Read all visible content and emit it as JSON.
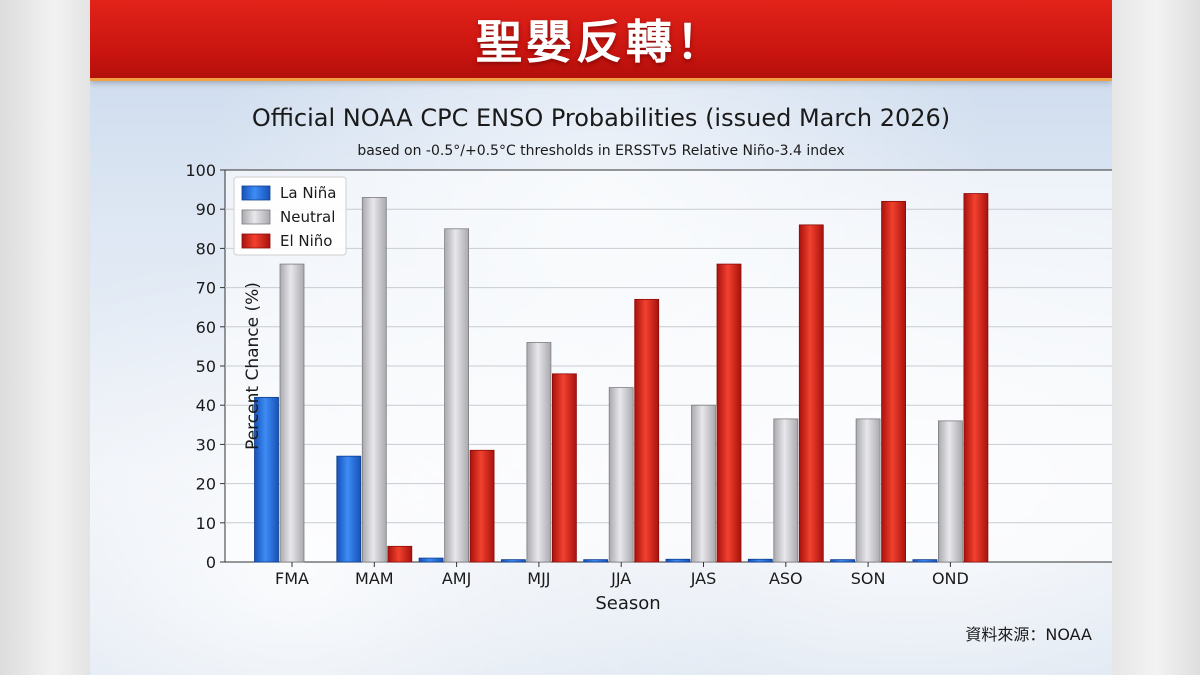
{
  "banner": {
    "title": "聖嬰反轉！"
  },
  "source_label": "資料來源：NOAA",
  "colors": {
    "la_nina": "#1f6fe0",
    "neutral": "#cfcfd4",
    "el_nino": "#e0241c",
    "banner": "#d41a14"
  },
  "chart_data": {
    "type": "bar",
    "title": "Official NOAA CPC ENSO Probabilities (issued March 2026)",
    "subtitle": "based on -0.5°/+0.5°C thresholds in ERSSTv5 Relative Niño-3.4 index",
    "xlabel": "Season",
    "ylabel": "Percent Chance (%)",
    "ylim": [
      0,
      100
    ],
    "yticks": [
      0,
      10,
      20,
      30,
      40,
      50,
      60,
      70,
      80,
      90,
      100
    ],
    "grid": true,
    "legend_position": "top-left",
    "categories": [
      "FMA",
      "MAM",
      "AMJ",
      "MJJ",
      "JJA",
      "JAS",
      "ASO",
      "SON",
      "OND"
    ],
    "series": [
      {
        "name": "La Niña",
        "values": [
          42,
          27,
          1,
          0.6,
          0.6,
          0.7,
          0.7,
          0.6,
          0.6
        ]
      },
      {
        "name": "Neutral",
        "values": [
          76,
          93,
          85,
          56,
          44.5,
          40,
          36.5,
          36.5,
          36
        ]
      },
      {
        "name": "El Niño",
        "values": [
          0,
          4,
          28.5,
          48,
          67,
          76,
          86,
          92,
          94
        ]
      }
    ]
  }
}
